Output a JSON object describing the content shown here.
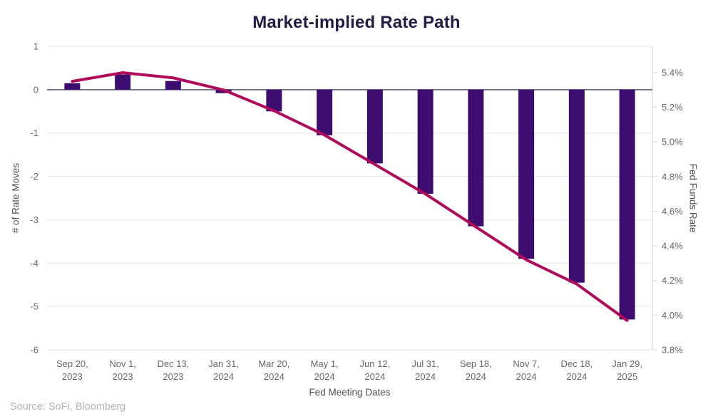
{
  "title": "Market-implied Rate Path",
  "source": "Source: SoFi, Bloomberg",
  "colors": {
    "title": "#221b46",
    "bar": "#3c0d6e",
    "line": "#b00b5b",
    "grid": "#e9e9e9",
    "plot_border": "#dcdcdc",
    "zero_line": "#6b6b85",
    "tick_label": "#666666",
    "axis_title": "#525252",
    "source": "#b4b4b4"
  },
  "chart_data": {
    "type": "bar+line combo",
    "title": "Market-implied Rate Path",
    "xlabel": "Fed Meeting Dates",
    "ylabel_left": "# of Rate Moves",
    "ylabel_right": "Fed Funds Rate",
    "categories": [
      "Sep 20, 2023",
      "Nov 1, 2023",
      "Dec 13, 2023",
      "Jan 31, 2024",
      "Mar 20, 2024",
      "May 1, 2024",
      "Jun 12, 2024",
      "Jul 31, 2024",
      "Sep 18, 2024",
      "Nov 7, 2024",
      "Dec 18, 2024",
      "Jan 29, 2025"
    ],
    "series": [
      {
        "name": "# of Rate Moves",
        "type": "bar",
        "axis": "left",
        "values": [
          0.15,
          0.35,
          0.2,
          -0.08,
          -0.5,
          -1.05,
          -1.7,
          -2.4,
          -3.15,
          -3.9,
          -4.45,
          -5.3
        ]
      },
      {
        "name": "Fed Funds Rate",
        "type": "line",
        "axis": "right",
        "values": [
          5.35,
          5.4,
          5.37,
          5.3,
          5.18,
          5.04,
          4.87,
          4.7,
          4.51,
          4.32,
          4.18,
          3.97
        ]
      }
    ],
    "ylim_left": [
      -6,
      1
    ],
    "yticks_left": [
      1,
      0,
      -1,
      -2,
      -3,
      -4,
      -5,
      -6
    ],
    "ylim_right": [
      3.8,
      5.552
    ],
    "yticks_right": [
      "5.4%",
      "5.2%",
      "5.0%",
      "4.8%",
      "4.6%",
      "4.4%",
      "4.2%",
      "4.0%",
      "3.8%"
    ],
    "grid": "horizontal only, at left-axis integers",
    "legend": "none"
  }
}
